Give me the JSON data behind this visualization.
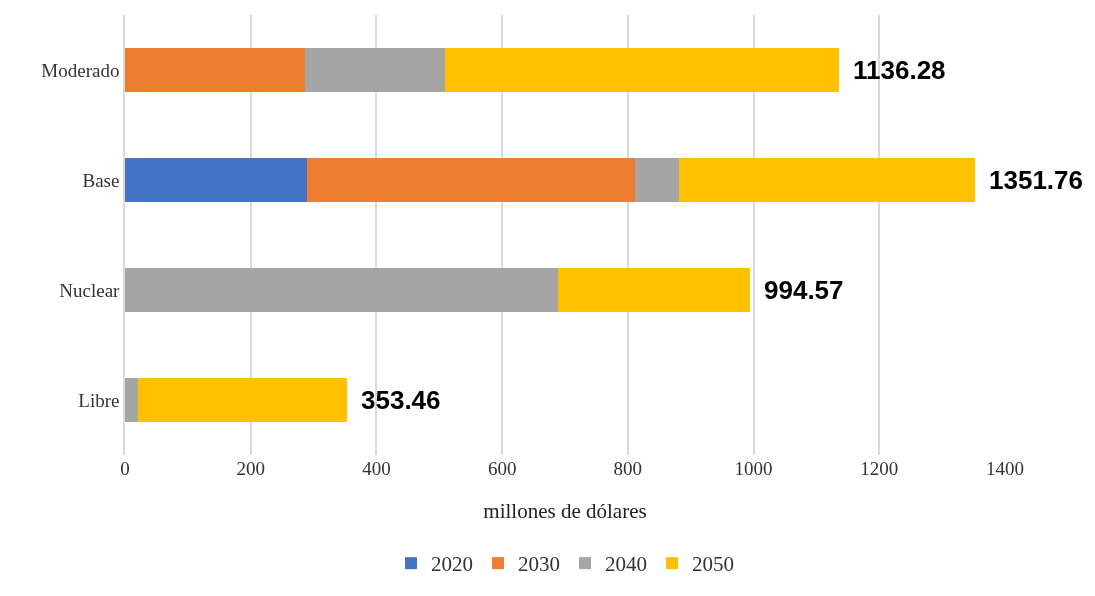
{
  "chart_data": {
    "type": "bar",
    "orientation": "horizontal",
    "stacked": true,
    "xlabel": "millones de dólares",
    "categories": [
      "Moderado",
      "Base",
      "Nuclear",
      "Libre"
    ],
    "series": [
      {
        "name": "2020",
        "color": "#4472c4",
        "values": [
          null,
          289,
          null,
          null
        ]
      },
      {
        "name": "2030",
        "color": "#ed7d31",
        "values": [
          287,
          523,
          null,
          null
        ]
      },
      {
        "name": "2040",
        "color": "#a5a5a5",
        "values": [
          222,
          70,
          689,
          21
        ]
      },
      {
        "name": "2050",
        "color": "#ffc000",
        "values": [
          627.28,
          469.76,
          305.57,
          332.46
        ]
      }
    ],
    "totals": [
      "1136.28",
      "1351.76",
      "994.57",
      "353.46"
    ],
    "xlim": [
      0,
      1400
    ],
    "xticks": [
      0,
      200,
      400,
      600,
      800,
      1000,
      1200,
      1400
    ],
    "grid": "x",
    "legend": "bottom"
  }
}
